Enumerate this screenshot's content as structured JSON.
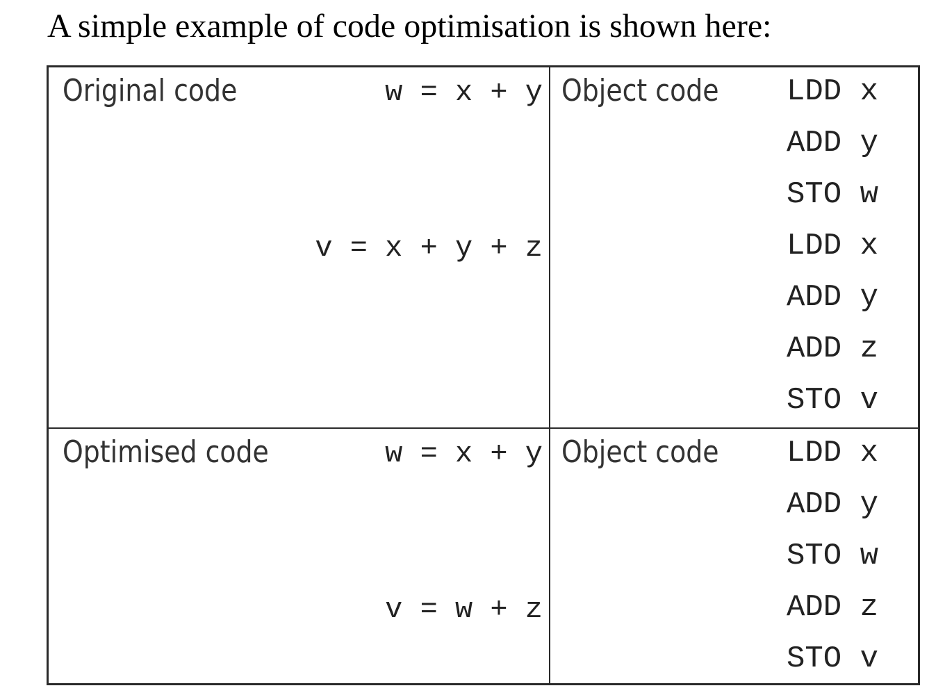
{
  "intro_text": "A simple example of code optimisation is shown here:",
  "original": {
    "label": "Original code",
    "object_label": "Object code",
    "source_lines": [
      "w = x + y",
      "v = x + y + z"
    ],
    "object_lines": [
      "LDD x",
      "ADD y",
      "STO w",
      "LDD x",
      "ADD y",
      "ADD z",
      "STO v"
    ]
  },
  "optimised": {
    "label": "Optimised code",
    "object_label": "Object code",
    "source_lines": [
      "w = x + y",
      "v = w + z"
    ],
    "object_lines": [
      "LDD x",
      "ADD y",
      "STO w",
      "ADD z",
      "STO v"
    ]
  }
}
